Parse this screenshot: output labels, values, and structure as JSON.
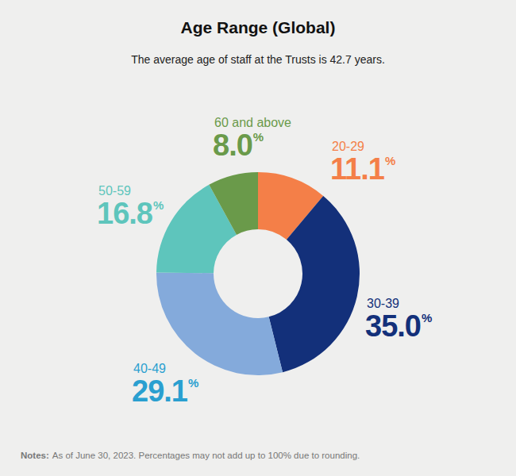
{
  "chart_data": {
    "type": "donut",
    "title": "Age Range (Global)",
    "subtitle": "The average age of staff at the Trusts is 42.7 years.",
    "categories": [
      "20-29",
      "30-39",
      "40-49",
      "50-59",
      "60 and above"
    ],
    "values": [
      11.1,
      35.0,
      29.1,
      16.8,
      8.0
    ],
    "value_labels": [
      "11.1%",
      "35.0%",
      "29.1%",
      "16.8%",
      "8.0%"
    ],
    "colors": [
      "#f47f48",
      "#13307a",
      "#84aadb",
      "#5ec5bc",
      "#6a9a4a"
    ],
    "data_labels": true,
    "notes": {
      "label": "Notes:",
      "text": "As of June 30, 2023. Percentages may not add up to 100% due to rounding."
    }
  }
}
